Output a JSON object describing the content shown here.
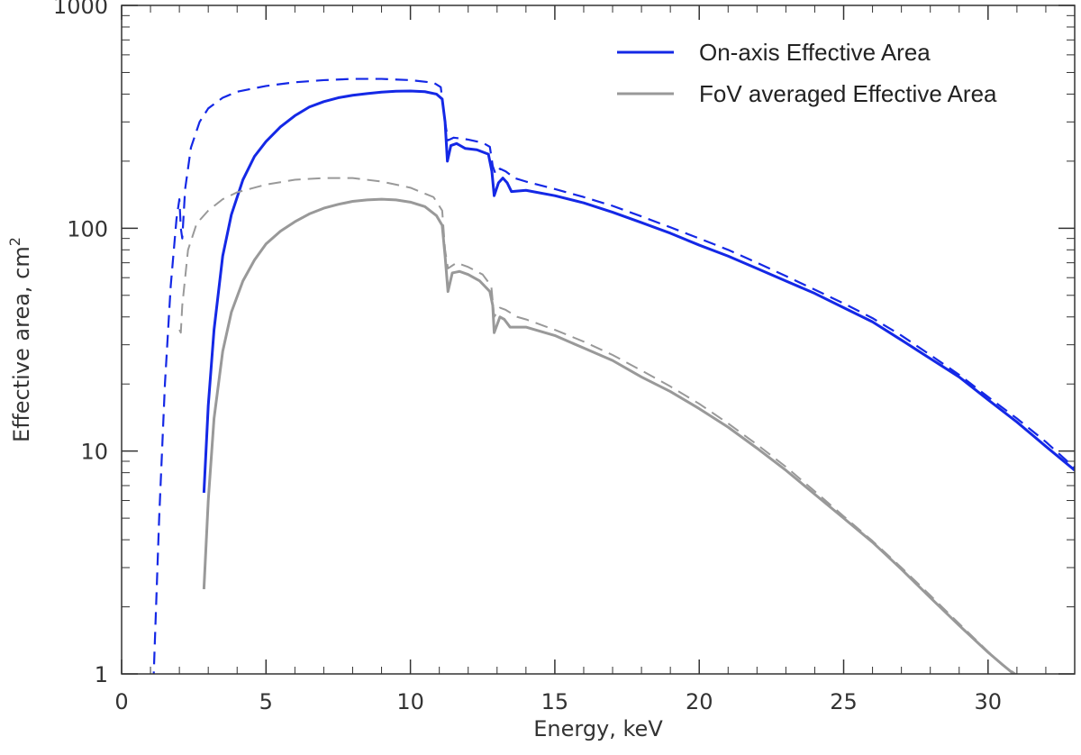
{
  "chart_data": {
    "type": "line",
    "title": "",
    "xlabel": "Energy, keV",
    "ylabel_main": "Effective area, cm",
    "ylabel_superscript": "2",
    "xlim": [
      0,
      33
    ],
    "ylim": [
      1,
      1000
    ],
    "yscale": "log",
    "x_ticks": [
      0,
      5,
      10,
      15,
      20,
      25,
      30
    ],
    "x_tick_labels": [
      "0",
      "5",
      "10",
      "15",
      "20",
      "25",
      "30"
    ],
    "y_ticks": [
      1,
      10,
      100,
      1000
    ],
    "y_tick_labels": [
      "1",
      "10",
      "100",
      "1000"
    ],
    "legend_position": "top-right",
    "legend": [
      {
        "label": "On-axis Effective Area",
        "color": "#1428e6"
      },
      {
        "label": "FoV averaged Effective Area",
        "color": "#999999"
      }
    ],
    "series": [
      {
        "name": "On-axis Effective Area (solid)",
        "color": "#1428e6",
        "style": "solid",
        "points": [
          [
            2.85,
            6.5
          ],
          [
            3.0,
            16
          ],
          [
            3.2,
            35
          ],
          [
            3.5,
            75
          ],
          [
            3.8,
            115
          ],
          [
            4.2,
            165
          ],
          [
            4.6,
            210
          ],
          [
            5.0,
            245
          ],
          [
            5.5,
            285
          ],
          [
            6.0,
            320
          ],
          [
            6.5,
            350
          ],
          [
            7.0,
            370
          ],
          [
            7.5,
            385
          ],
          [
            8.0,
            395
          ],
          [
            8.5,
            402
          ],
          [
            9.0,
            408
          ],
          [
            9.5,
            412
          ],
          [
            10.0,
            413
          ],
          [
            10.5,
            410
          ],
          [
            10.9,
            400
          ],
          [
            11.1,
            380
          ],
          [
            11.2,
            300
          ],
          [
            11.28,
            200
          ],
          [
            11.4,
            235
          ],
          [
            11.6,
            240
          ],
          [
            11.9,
            228
          ],
          [
            12.3,
            225
          ],
          [
            12.7,
            215
          ],
          [
            12.82,
            180
          ],
          [
            12.9,
            140
          ],
          [
            13.05,
            160
          ],
          [
            13.2,
            168
          ],
          [
            13.35,
            160
          ],
          [
            13.5,
            146
          ],
          [
            14.0,
            148
          ],
          [
            15.0,
            140
          ],
          [
            16.0,
            130
          ],
          [
            17.0,
            118
          ],
          [
            18.0,
            106
          ],
          [
            19.0,
            95
          ],
          [
            20.0,
            84
          ],
          [
            21.0,
            75
          ],
          [
            22.0,
            66
          ],
          [
            23.0,
            58
          ],
          [
            24.0,
            51
          ],
          [
            25.0,
            44
          ],
          [
            26.0,
            38
          ],
          [
            27.0,
            31.5
          ],
          [
            28.0,
            26
          ],
          [
            29.0,
            21.5
          ],
          [
            30.0,
            17
          ],
          [
            31.0,
            13.5
          ],
          [
            32.0,
            10.5
          ],
          [
            33.0,
            8.2
          ]
        ]
      },
      {
        "name": "On-axis Effective Area (dashed)",
        "color": "#1428e6",
        "style": "dashed",
        "points": [
          [
            1.1,
            0.9
          ],
          [
            1.3,
            5
          ],
          [
            1.5,
            20
          ],
          [
            1.7,
            55
          ],
          [
            1.9,
            110
          ],
          [
            2.0,
            135
          ],
          [
            2.05,
            100
          ],
          [
            2.1,
            90
          ],
          [
            2.2,
            150
          ],
          [
            2.4,
            230
          ],
          [
            2.7,
            300
          ],
          [
            3.0,
            345
          ],
          [
            3.5,
            385
          ],
          [
            4.0,
            410
          ],
          [
            5.0,
            435
          ],
          [
            6.0,
            452
          ],
          [
            7.0,
            462
          ],
          [
            8.0,
            468
          ],
          [
            9.0,
            468
          ],
          [
            10.0,
            462
          ],
          [
            10.8,
            450
          ],
          [
            11.05,
            430
          ],
          [
            11.2,
            300
          ],
          [
            11.3,
            248
          ],
          [
            11.5,
            255
          ],
          [
            12.0,
            250
          ],
          [
            12.5,
            242
          ],
          [
            12.75,
            232
          ],
          [
            12.85,
            190
          ],
          [
            12.95,
            175
          ],
          [
            13.1,
            185
          ],
          [
            13.3,
            180
          ],
          [
            13.6,
            168
          ],
          [
            14.0,
            162
          ],
          [
            15.0,
            150
          ],
          [
            16.0,
            138
          ],
          [
            17.0,
            126
          ],
          [
            18.0,
            113
          ],
          [
            19.0,
            101
          ],
          [
            20.0,
            90
          ],
          [
            21.0,
            80
          ],
          [
            22.0,
            70
          ],
          [
            23.0,
            61
          ],
          [
            24.0,
            53
          ],
          [
            25.0,
            46
          ],
          [
            26.0,
            39.5
          ],
          [
            27.0,
            33
          ],
          [
            28.0,
            27
          ],
          [
            29.0,
            22
          ],
          [
            30.0,
            17.5
          ],
          [
            31.0,
            14
          ],
          [
            32.0,
            11
          ],
          [
            33.0,
            8.4
          ]
        ]
      },
      {
        "name": "FoV averaged Effective Area (solid)",
        "color": "#999999",
        "style": "solid",
        "points": [
          [
            2.85,
            2.4
          ],
          [
            3.0,
            6
          ],
          [
            3.2,
            14
          ],
          [
            3.5,
            28
          ],
          [
            3.8,
            42
          ],
          [
            4.2,
            58
          ],
          [
            4.6,
            72
          ],
          [
            5.0,
            85
          ],
          [
            5.5,
            97
          ],
          [
            6.0,
            107
          ],
          [
            6.5,
            116
          ],
          [
            7.0,
            123
          ],
          [
            7.5,
            128
          ],
          [
            8.0,
            132
          ],
          [
            8.5,
            134
          ],
          [
            9.0,
            135
          ],
          [
            9.5,
            134
          ],
          [
            10.0,
            131
          ],
          [
            10.5,
            125
          ],
          [
            10.9,
            114
          ],
          [
            11.1,
            103
          ],
          [
            11.2,
            75
          ],
          [
            11.3,
            52
          ],
          [
            11.45,
            63
          ],
          [
            11.7,
            64
          ],
          [
            12.0,
            62
          ],
          [
            12.4,
            58
          ],
          [
            12.75,
            52
          ],
          [
            12.85,
            45
          ],
          [
            12.9,
            34
          ],
          [
            13.1,
            40
          ],
          [
            13.25,
            39
          ],
          [
            13.45,
            36
          ],
          [
            14.0,
            36
          ],
          [
            15.0,
            33
          ],
          [
            16.0,
            29
          ],
          [
            17.0,
            25.5
          ],
          [
            18.0,
            21.5
          ],
          [
            19.0,
            18.5
          ],
          [
            20.0,
            15.5
          ],
          [
            21.0,
            12.8
          ],
          [
            22.0,
            10.3
          ],
          [
            23.0,
            8.2
          ],
          [
            24.0,
            6.4
          ],
          [
            25.0,
            5.0
          ],
          [
            26.0,
            3.9
          ],
          [
            27.0,
            2.95
          ],
          [
            28.0,
            2.2
          ],
          [
            29.0,
            1.65
          ],
          [
            30.0,
            1.25
          ],
          [
            30.5,
            1.1
          ],
          [
            31.1,
            0.95
          ]
        ]
      },
      {
        "name": "FoV averaged Effective Area (dashed)",
        "color": "#999999",
        "style": "dashed",
        "points": [
          [
            2.0,
            35
          ],
          [
            2.05,
            34
          ],
          [
            2.1,
            45
          ],
          [
            2.3,
            80
          ],
          [
            2.6,
            105
          ],
          [
            3.0,
            120
          ],
          [
            3.5,
            135
          ],
          [
            4.0,
            145
          ],
          [
            5.0,
            157
          ],
          [
            6.0,
            165
          ],
          [
            7.0,
            168
          ],
          [
            8.0,
            168
          ],
          [
            9.0,
            162
          ],
          [
            10.0,
            152
          ],
          [
            10.8,
            138
          ],
          [
            11.1,
            120
          ],
          [
            11.2,
            80
          ],
          [
            11.3,
            66
          ],
          [
            11.6,
            70
          ],
          [
            12.0,
            67
          ],
          [
            12.5,
            62
          ],
          [
            12.8,
            55
          ],
          [
            12.9,
            40
          ],
          [
            13.1,
            44
          ],
          [
            13.3,
            43
          ],
          [
            13.7,
            40
          ],
          [
            14.0,
            39
          ],
          [
            15.0,
            35
          ],
          [
            16.0,
            31
          ],
          [
            17.0,
            27
          ],
          [
            18.0,
            23
          ],
          [
            19.0,
            19.5
          ],
          [
            20.0,
            16.3
          ],
          [
            21.0,
            13.3
          ],
          [
            22.0,
            10.7
          ],
          [
            23.0,
            8.5
          ],
          [
            24.0,
            6.6
          ],
          [
            25.0,
            5.1
          ],
          [
            26.0,
            3.95
          ],
          [
            27.0,
            3.0
          ],
          [
            28.0,
            2.25
          ],
          [
            29.0,
            1.68
          ],
          [
            30.0,
            1.26
          ],
          [
            30.5,
            1.1
          ],
          [
            31.2,
            0.95
          ]
        ]
      }
    ]
  }
}
